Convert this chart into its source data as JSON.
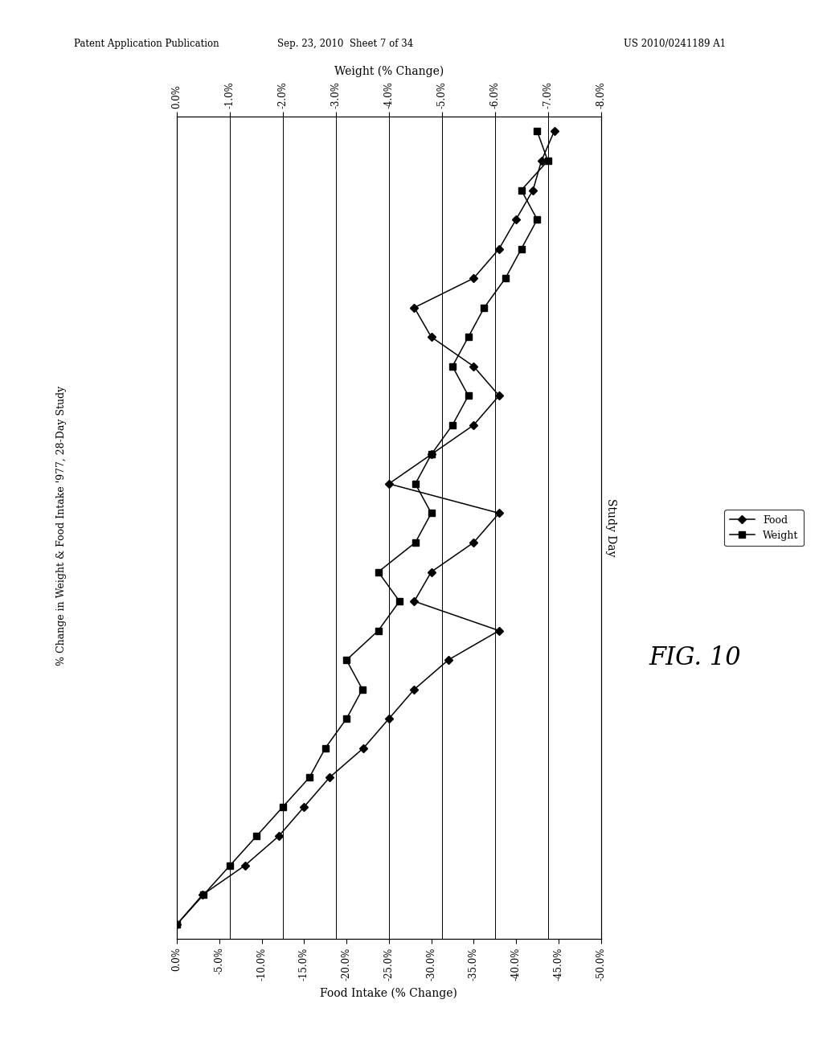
{
  "header_left": "Patent Application Publication",
  "header_mid": "Sep. 23, 2010  Sheet 7 of 34",
  "header_right": "US 2010/0241189 A1",
  "top_xlabel": "Weight (% Change)",
  "bottom_xlabel": "Food Intake (% Change)",
  "right_ylabel": "Study Day",
  "left_ylabel": "% Change in Weight & Food Intake '977, 28-Day Study",
  "fig_label": "FIG. 10",
  "weight_data_x": [
    0.0,
    -0.5,
    -1.0,
    -1.5,
    -2.0,
    -2.5,
    -2.8,
    -3.2,
    -3.5,
    -3.2,
    -3.8,
    -4.2,
    -3.8,
    -4.5,
    -4.8,
    -4.5,
    -4.8,
    -5.2,
    -5.5,
    -5.2,
    -5.5,
    -5.8,
    -6.2,
    -6.5,
    -6.8,
    -6.5,
    -7.0,
    -6.8
  ],
  "weight_data_y": [
    1,
    2,
    3,
    4,
    5,
    6,
    7,
    8,
    9,
    10,
    11,
    12,
    13,
    14,
    15,
    16,
    17,
    18,
    19,
    20,
    21,
    22,
    23,
    24,
    25,
    26,
    27,
    28
  ],
  "food_data_x": [
    0.0,
    -3.0,
    -8.0,
    -12.0,
    -15.0,
    -18.0,
    -22.0,
    -25.0,
    -28.0,
    -32.0,
    -38.0,
    -28.0,
    -30.0,
    -35.0,
    -38.0,
    -25.0,
    -30.0,
    -35.0,
    -38.0,
    -35.0,
    -30.0,
    -28.0,
    -35.0,
    -38.0,
    -40.0,
    -42.0,
    -43.0,
    -44.5
  ],
  "food_data_y": [
    1,
    2,
    3,
    4,
    5,
    6,
    7,
    8,
    9,
    10,
    11,
    12,
    13,
    14,
    15,
    16,
    17,
    18,
    19,
    20,
    21,
    22,
    23,
    24,
    25,
    26,
    27,
    28
  ],
  "weight_xlim": [
    0.0,
    -8.0
  ],
  "food_xlim": [
    0.0,
    -50.0
  ],
  "ylim_min": 1,
  "ylim_max": 28,
  "weight_ticks": [
    0.0,
    -1.0,
    -2.0,
    -3.0,
    -4.0,
    -5.0,
    -6.0,
    -7.0,
    -8.0
  ],
  "food_ticks": [
    0.0,
    -5.0,
    -10.0,
    -15.0,
    -20.0,
    -25.0,
    -30.0,
    -35.0,
    -40.0,
    -45.0,
    -50.0
  ],
  "day_ticks": [
    1,
    6,
    11,
    16,
    21,
    26
  ],
  "bg_color": "#ffffff",
  "line_color": "#000000"
}
